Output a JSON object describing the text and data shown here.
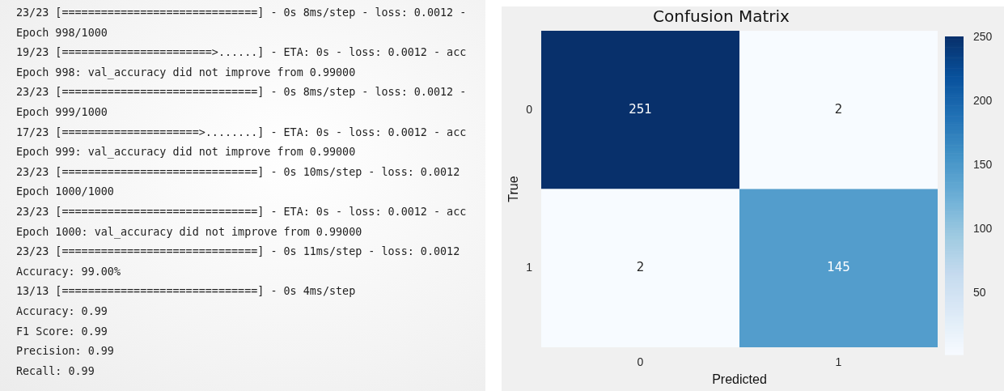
{
  "chart_data": [
    {
      "type": "other",
      "annotations": [
        "23/23 [==============================] - 0s 8ms/step - loss: 0.0012 -",
        "Epoch 998/1000",
        "19/23 [=======================>......] - ETA: 0s - loss: 0.0012 - acc",
        "Epoch 998: val_accuracy did not improve from 0.99000",
        "23/23 [==============================] - 0s 8ms/step - loss: 0.0012 -",
        "Epoch 999/1000",
        "17/23 [=====================>........] - ETA: 0s - loss: 0.0012 - acc",
        "Epoch 999: val_accuracy did not improve from 0.99000",
        "23/23 [==============================] - 0s 10ms/step - loss: 0.0012",
        "Epoch 1000/1000",
        "23/23 [==============================] - ETA: 0s - loss: 0.0012 - acc",
        "Epoch 1000: val_accuracy did not improve from 0.99000",
        "23/23 [==============================] - 0s 11ms/step - loss: 0.0012",
        "Accuracy: 99.00%",
        "13/13 [==============================] - 0s 4ms/step",
        "Accuracy: 0.99",
        "F1 Score: 0.99",
        "Precision: 0.99",
        "Recall: 0.99"
      ]
    },
    {
      "type": "heatmap",
      "title": "Confusion Matrix",
      "xlabel": "Predicted",
      "ylabel": "True",
      "categories": [
        "0",
        "1"
      ],
      "y_categories": [
        "0",
        "1"
      ],
      "cells": [
        [
          251,
          2
        ],
        [
          2,
          145
        ]
      ],
      "clim": [
        2,
        251
      ],
      "cticks": [
        50,
        100,
        150,
        200,
        250
      ],
      "data_labels": true
    }
  ]
}
